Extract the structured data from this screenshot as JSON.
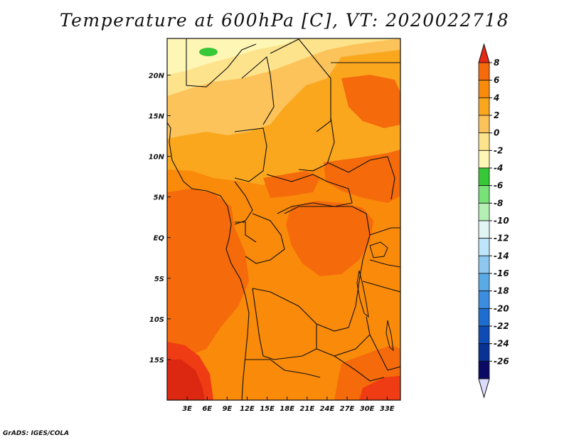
{
  "title": "Temperature at 600hPa [C], VT: 2020022718",
  "credit": "GrADS: IGES/COLA",
  "map": {
    "lon_range": [
      0,
      35
    ],
    "lat_range": [
      -20,
      24.5
    ],
    "lon_ticks": [
      {
        "value": 3,
        "label": "3E"
      },
      {
        "value": 6,
        "label": "6E"
      },
      {
        "value": 9,
        "label": "9E"
      },
      {
        "value": 12,
        "label": "12E"
      },
      {
        "value": 15,
        "label": "15E"
      },
      {
        "value": 18,
        "label": "18E"
      },
      {
        "value": 21,
        "label": "21E"
      },
      {
        "value": 24,
        "label": "24E"
      },
      {
        "value": 27,
        "label": "27E"
      },
      {
        "value": 30,
        "label": "30E"
      },
      {
        "value": 33,
        "label": "33E"
      }
    ],
    "lat_ticks": [
      {
        "value": 20,
        "label": "20N"
      },
      {
        "value": 15,
        "label": "15N"
      },
      {
        "value": 10,
        "label": "10N"
      },
      {
        "value": 5,
        "label": "5N"
      },
      {
        "value": 0,
        "label": "EQ"
      },
      {
        "value": -5,
        "label": "5S"
      },
      {
        "value": -10,
        "label": "10S"
      },
      {
        "value": -15,
        "label": "15S"
      }
    ]
  },
  "colorbar": {
    "labels": [
      "8",
      "6",
      "4",
      "2",
      "0",
      "-2",
      "-4",
      "-6",
      "-8",
      "-10",
      "-12",
      "-14",
      "-16",
      "-18",
      "-20",
      "-22",
      "-24",
      "-26"
    ],
    "colors": [
      "#f03c14",
      "#f56a0a",
      "#f98a0a",
      "#faa71e",
      "#fbc35a",
      "#fde38c",
      "#fdf6b4",
      "#37c837",
      "#78e178",
      "#b4f0b4",
      "#e1f5f5",
      "#bee6fa",
      "#8cc8f0",
      "#5aaae6",
      "#3c8ce1",
      "#1e6ed2",
      "#0f4bb4",
      "#083296",
      "#0a0a64"
    ],
    "top_cap_color": "#e62814",
    "bottom_cap_color": "#dcdcff"
  }
}
